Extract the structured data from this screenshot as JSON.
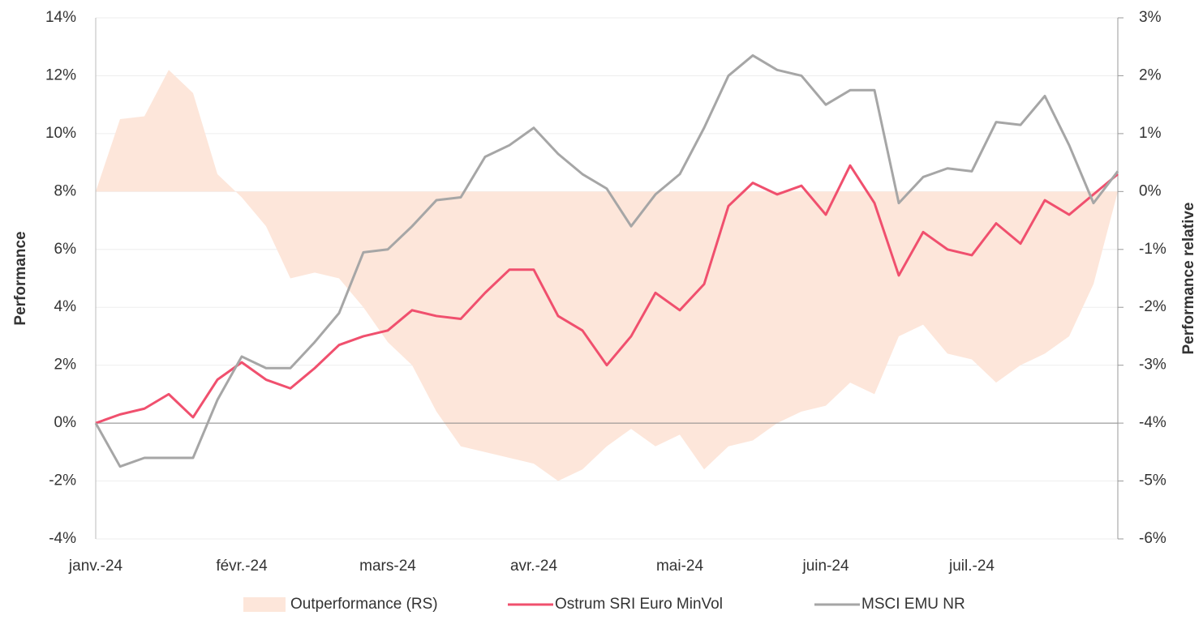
{
  "chart_data": {
    "type": "line",
    "categories": [
      "janv.-24",
      null,
      null,
      null,
      null,
      null,
      "févr.-24",
      null,
      null,
      null,
      null,
      null,
      "mars-24",
      null,
      null,
      null,
      null,
      null,
      "avr.-24",
      null,
      null,
      null,
      null,
      null,
      "mai-24",
      null,
      null,
      null,
      null,
      null,
      "juin-24",
      null,
      null,
      null,
      null,
      null,
      "juil.-24",
      null,
      null,
      null,
      null,
      null,
      null
    ],
    "series": [
      {
        "name": "Outperformance (RS)",
        "type": "area",
        "axis": "y2",
        "color": "#fde6da",
        "values": [
          0,
          1.25,
          1.3,
          2.1,
          1.7,
          0.3,
          -0.1,
          -0.6,
          -1.5,
          -1.4,
          -1.5,
          -2.0,
          -2.6,
          -3.0,
          -3.8,
          -4.4,
          -4.5,
          -4.6,
          -4.7,
          -5.0,
          -4.8,
          -4.4,
          -4.1,
          -4.4,
          -4.2,
          -4.8,
          -4.4,
          -4.3,
          -4.0,
          -3.8,
          -3.7,
          -3.3,
          -3.5,
          -2.5,
          -2.3,
          -2.8,
          -2.9,
          -3.3,
          -3.0,
          -2.8,
          -2.5,
          -1.6,
          0
        ]
      },
      {
        "name": "Ostrum SRI Euro MinVol",
        "type": "line",
        "color": "#f0506e",
        "values": [
          0,
          0.3,
          0.5,
          1.0,
          0.2,
          1.5,
          2.1,
          1.5,
          1.2,
          1.9,
          2.7,
          3.0,
          3.2,
          3.9,
          3.7,
          3.6,
          4.5,
          5.3,
          5.3,
          3.7,
          3.2,
          2.0,
          3.0,
          4.5,
          3.9,
          4.8,
          7.5,
          8.3,
          7.9,
          8.2,
          7.2,
          8.9,
          7.6,
          5.1,
          6.6,
          6.0,
          5.8,
          6.9,
          6.2,
          7.7,
          7.2,
          7.9,
          8.6
        ]
      },
      {
        "name": "MSCI EMU NR",
        "type": "line",
        "color": "#a6a6a6",
        "values": [
          0,
          -1.5,
          -1.2,
          -1.2,
          -1.2,
          0.8,
          2.3,
          1.9,
          1.9,
          2.8,
          3.8,
          5.9,
          6.0,
          6.8,
          7.7,
          7.8,
          9.2,
          9.6,
          10.2,
          9.3,
          8.6,
          8.1,
          6.8,
          7.9,
          8.6,
          10.2,
          12.0,
          12.7,
          12.2,
          12.0,
          11.0,
          11.5,
          11.5,
          7.6,
          8.5,
          8.8,
          8.7,
          10.4,
          10.3,
          11.3,
          9.6,
          7.6,
          8.7
        ]
      }
    ],
    "ylabel": "Performance",
    "y2label": "Performance relative",
    "ylim": [
      -4,
      14
    ],
    "yticks": [
      {
        "value": -4,
        "label": "-4%"
      },
      {
        "value": -2,
        "label": "-2%"
      },
      {
        "value": 0,
        "label": "0%"
      },
      {
        "value": 2,
        "label": "2%"
      },
      {
        "value": 4,
        "label": "4%"
      },
      {
        "value": 6,
        "label": "6%"
      },
      {
        "value": 8,
        "label": "8%"
      },
      {
        "value": 10,
        "label": "10%"
      },
      {
        "value": 12,
        "label": "12%"
      },
      {
        "value": 14,
        "label": "14%"
      }
    ],
    "y2lim": [
      -6,
      3
    ],
    "y2ticks": [
      {
        "value": -6,
        "label": "-6%"
      },
      {
        "value": -5,
        "label": "-5%"
      },
      {
        "value": -4,
        "label": "-4%"
      },
      {
        "value": -3,
        "label": "-3%"
      },
      {
        "value": -2,
        "label": "-2%"
      },
      {
        "value": -1,
        "label": "-1%"
      },
      {
        "value": 0,
        "label": "0%"
      },
      {
        "value": 1,
        "label": "1%"
      },
      {
        "value": 2,
        "label": "2%"
      },
      {
        "value": 3,
        "label": "3%"
      }
    ],
    "grid": true,
    "legend": "bottom"
  }
}
